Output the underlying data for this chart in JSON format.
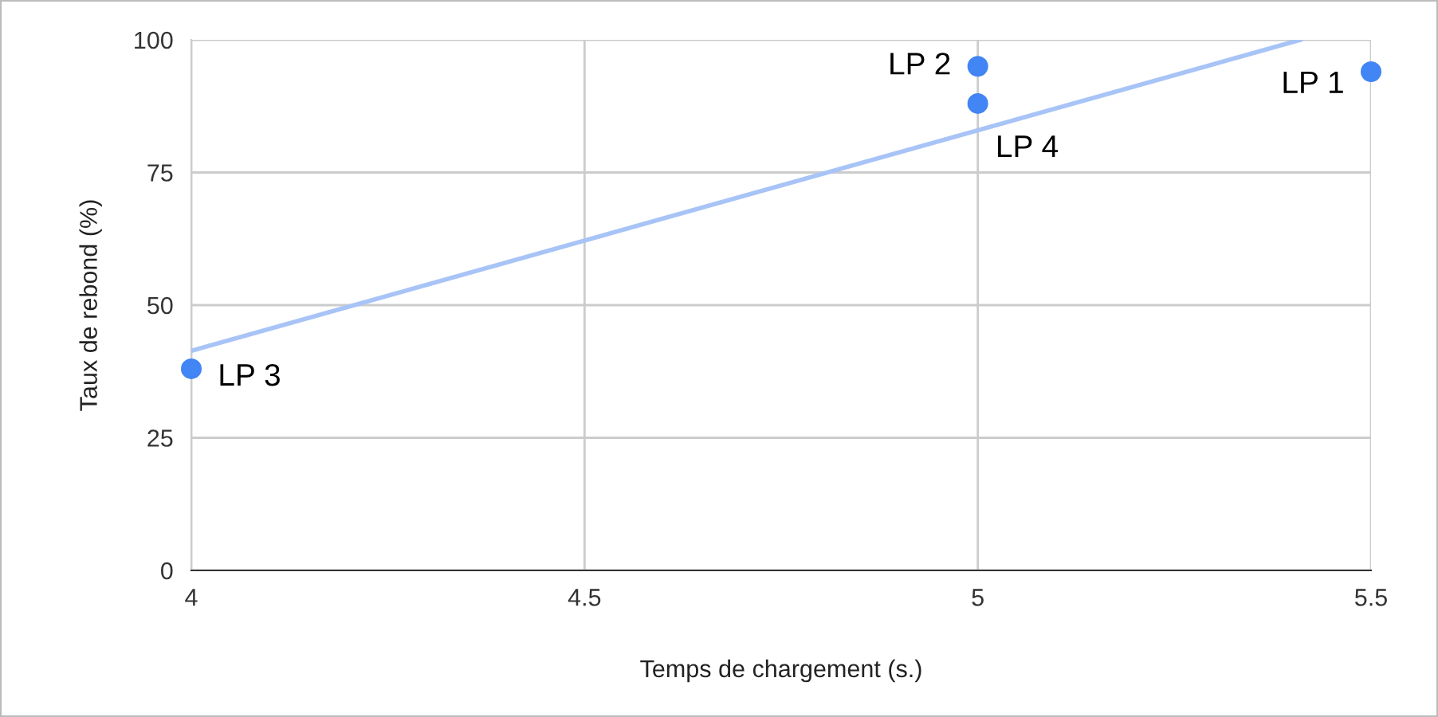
{
  "chart_data": {
    "type": "scatter",
    "xlabel": "Temps de chargement (s.)",
    "ylabel": "Taux de rebond (%)",
    "xlim": [
      4,
      5.5
    ],
    "xticks": [
      4,
      4.5,
      5,
      5.5
    ],
    "ylim": [
      0,
      100
    ],
    "yticks": [
      0,
      25,
      50,
      75,
      100
    ],
    "grid": true,
    "series": [
      {
        "marker": "circle",
        "color": "#4285f4",
        "x": [
          5.5,
          5,
          4,
          5
        ],
        "values": [
          94,
          95,
          38,
          88
        ],
        "value_labels": [
          "LP 1",
          "LP 2",
          "LP 3",
          "LP 4"
        ]
      },
      {
        "type": "line",
        "color": "#a8c4f7",
        "x": [
          4,
          5.41
        ],
        "values": [
          41.4,
          100
        ],
        "line_style": "solid"
      }
    ]
  }
}
